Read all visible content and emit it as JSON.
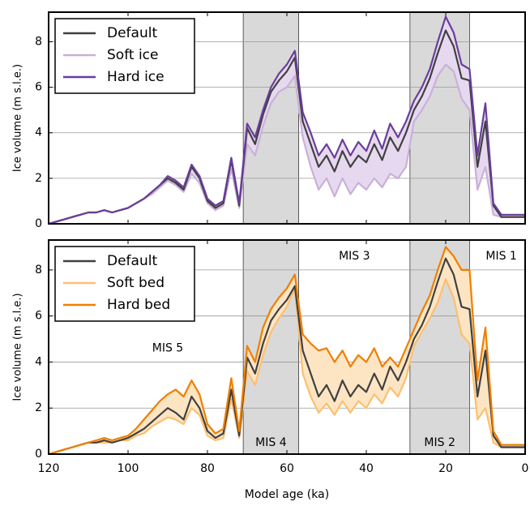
{
  "chart_data": [
    {
      "type": "line",
      "ylabel": "Ice volume (m s.l.e.)",
      "x": [
        120,
        118,
        116,
        114,
        112,
        110,
        108,
        106,
        104,
        102,
        100,
        98,
        96,
        94,
        92,
        90,
        88,
        86,
        84,
        82,
        80,
        78,
        76,
        74,
        72,
        70,
        68,
        66,
        64,
        62,
        60,
        58,
        56,
        54,
        52,
        50,
        48,
        46,
        44,
        42,
        40,
        38,
        36,
        34,
        32,
        30,
        28,
        26,
        24,
        22,
        20,
        18,
        16,
        14,
        12,
        10,
        8,
        6,
        4,
        2,
        0
      ],
      "xlim": [
        120,
        0
      ],
      "xticks": [
        120,
        100,
        80,
        60,
        40,
        20,
        0
      ],
      "show_xtick_labels": false,
      "ylim": [
        0,
        9.3
      ],
      "yticks": [
        0,
        2,
        4,
        6,
        8
      ],
      "grid": true,
      "legend": "upper left",
      "shaded_bands": [
        [
          71,
          57
        ],
        [
          29,
          14
        ]
      ],
      "spread_fill": "#e6d9ef",
      "series": [
        {
          "name": "Default",
          "color": "#404040",
          "values": [
            0,
            0.1,
            0.2,
            0.3,
            0.4,
            0.5,
            0.5,
            0.6,
            0.5,
            0.6,
            0.7,
            0.9,
            1.1,
            1.4,
            1.7,
            2.0,
            1.8,
            1.5,
            2.5,
            2.0,
            1.0,
            0.7,
            0.9,
            2.8,
            0.8,
            4.2,
            3.5,
            4.8,
            5.8,
            6.3,
            6.7,
            7.3,
            4.5,
            3.5,
            2.5,
            3.0,
            2.3,
            3.2,
            2.5,
            3.0,
            2.7,
            3.5,
            2.8,
            3.8,
            3.2,
            4.0,
            5.0,
            5.6,
            6.4,
            7.5,
            8.5,
            7.8,
            6.4,
            6.3,
            2.5,
            4.5,
            0.8,
            0.3,
            0.3,
            0.3,
            0.3
          ]
        },
        {
          "name": "Soft ice",
          "color": "#c9b0db",
          "values": [
            0,
            0.1,
            0.2,
            0.3,
            0.4,
            0.5,
            0.5,
            0.6,
            0.5,
            0.6,
            0.7,
            0.9,
            1.1,
            1.3,
            1.6,
            1.9,
            1.7,
            1.4,
            2.2,
            1.8,
            0.9,
            0.6,
            0.8,
            2.4,
            0.7,
            3.5,
            3.0,
            4.3,
            5.3,
            5.8,
            6.0,
            6.5,
            3.8,
            2.5,
            1.5,
            2.0,
            1.2,
            2.0,
            1.3,
            1.8,
            1.5,
            2.0,
            1.6,
            2.2,
            2.0,
            2.5,
            4.5,
            5.0,
            5.6,
            6.5,
            7.0,
            6.7,
            5.5,
            5.0,
            1.5,
            2.5,
            0.4,
            0.3,
            0.3,
            0.3,
            0.3
          ]
        },
        {
          "name": "Hard ice",
          "color": "#6a3d9a",
          "values": [
            0,
            0.1,
            0.2,
            0.3,
            0.4,
            0.5,
            0.5,
            0.6,
            0.5,
            0.6,
            0.7,
            0.9,
            1.1,
            1.4,
            1.7,
            2.1,
            1.9,
            1.6,
            2.6,
            2.1,
            1.1,
            0.8,
            1.0,
            2.9,
            0.9,
            4.4,
            3.8,
            5.0,
            6.0,
            6.6,
            7.0,
            7.6,
            4.9,
            4.0,
            3.0,
            3.5,
            2.9,
            3.7,
            3.0,
            3.6,
            3.2,
            4.1,
            3.3,
            4.4,
            3.8,
            4.5,
            5.4,
            6.0,
            6.8,
            8.0,
            9.1,
            8.4,
            7.0,
            6.8,
            3.0,
            5.3,
            0.9,
            0.4,
            0.4,
            0.4,
            0.4
          ]
        }
      ]
    },
    {
      "type": "line",
      "ylabel": "Ice volume (m s.l.e.)",
      "xlabel": "Model age (ka)",
      "x": [
        120,
        118,
        116,
        114,
        112,
        110,
        108,
        106,
        104,
        102,
        100,
        98,
        96,
        94,
        92,
        90,
        88,
        86,
        84,
        82,
        80,
        78,
        76,
        74,
        72,
        70,
        68,
        66,
        64,
        62,
        60,
        58,
        56,
        54,
        52,
        50,
        48,
        46,
        44,
        42,
        40,
        38,
        36,
        34,
        32,
        30,
        28,
        26,
        24,
        22,
        20,
        18,
        16,
        14,
        12,
        10,
        8,
        6,
        4,
        2,
        0
      ],
      "xlim": [
        120,
        0
      ],
      "xticks": [
        120,
        100,
        80,
        60,
        40,
        20,
        0
      ],
      "show_xtick_labels": true,
      "ylim": [
        0,
        9.3
      ],
      "yticks": [
        0,
        2,
        4,
        6,
        8
      ],
      "grid": true,
      "legend": "upper left",
      "shaded_bands": [
        [
          71,
          57
        ],
        [
          29,
          14
        ]
      ],
      "spread_fill": "#fde5c4",
      "annotations": [
        "MIS 5",
        "MIS 4",
        "MIS 3",
        "MIS 2",
        "MIS 1"
      ],
      "series": [
        {
          "name": "Default",
          "color": "#404040",
          "values": [
            0,
            0.1,
            0.2,
            0.3,
            0.4,
            0.5,
            0.5,
            0.6,
            0.5,
            0.6,
            0.7,
            0.9,
            1.1,
            1.4,
            1.7,
            2.0,
            1.8,
            1.5,
            2.5,
            2.0,
            1.0,
            0.7,
            0.9,
            2.8,
            0.8,
            4.2,
            3.5,
            4.8,
            5.8,
            6.3,
            6.7,
            7.3,
            4.5,
            3.5,
            2.5,
            3.0,
            2.3,
            3.2,
            2.5,
            3.0,
            2.7,
            3.5,
            2.8,
            3.8,
            3.2,
            4.0,
            5.0,
            5.6,
            6.4,
            7.5,
            8.5,
            7.8,
            6.4,
            6.3,
            2.5,
            4.5,
            0.8,
            0.3,
            0.3,
            0.3,
            0.3
          ]
        },
        {
          "name": "Soft bed",
          "color": "#fdbf6f",
          "values": [
            0,
            0.1,
            0.2,
            0.3,
            0.4,
            0.5,
            0.5,
            0.5,
            0.5,
            0.6,
            0.6,
            0.8,
            0.9,
            1.2,
            1.4,
            1.6,
            1.5,
            1.3,
            2.0,
            1.7,
            0.8,
            0.6,
            0.7,
            2.4,
            0.7,
            3.6,
            3.0,
            4.3,
            5.3,
            5.9,
            6.4,
            7.2,
            3.5,
            2.5,
            1.8,
            2.2,
            1.7,
            2.3,
            1.8,
            2.3,
            2.0,
            2.6,
            2.2,
            2.9,
            2.5,
            3.3,
            4.7,
            5.3,
            5.9,
            6.6,
            7.6,
            6.8,
            5.2,
            4.8,
            1.5,
            2.0,
            0.5,
            0.3,
            0.3,
            0.3,
            0.3
          ]
        },
        {
          "name": "Hard bed",
          "color": "#f07f00",
          "values": [
            0,
            0.1,
            0.2,
            0.3,
            0.4,
            0.5,
            0.6,
            0.7,
            0.6,
            0.7,
            0.8,
            1.1,
            1.5,
            1.9,
            2.3,
            2.6,
            2.8,
            2.5,
            3.2,
            2.6,
            1.3,
            0.9,
            1.1,
            3.3,
            1.0,
            4.7,
            4.0,
            5.5,
            6.3,
            6.8,
            7.2,
            7.8,
            5.2,
            4.8,
            4.5,
            4.6,
            4.0,
            4.5,
            3.8,
            4.3,
            4.0,
            4.6,
            3.8,
            4.2,
            3.8,
            4.6,
            5.4,
            6.2,
            6.9,
            8.0,
            9.0,
            8.6,
            8.0,
            8.0,
            3.2,
            5.5,
            1.0,
            0.4,
            0.4,
            0.4,
            0.4
          ]
        }
      ]
    }
  ]
}
